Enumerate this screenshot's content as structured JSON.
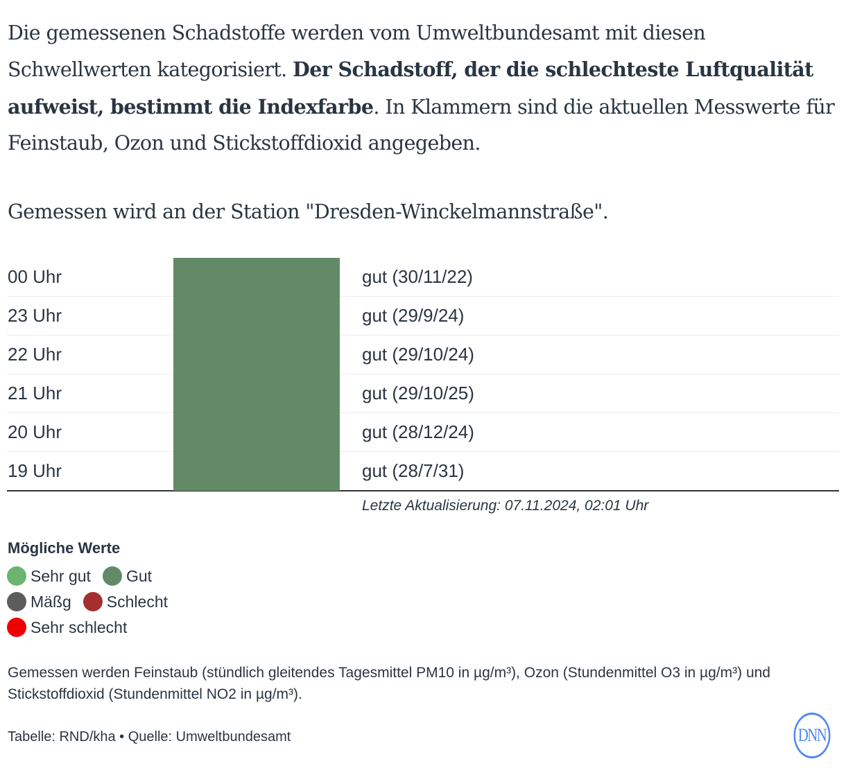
{
  "intro": {
    "part1": "Die gemessenen Schadstoffe werden vom Umweltbundesamt mit diesen Schwellwerten kategorisiert. ",
    "bold": "Der Schadstoff, der die schlechteste Luftqualität aufweist, bestimmt die Indexfarbe",
    "part2": ". In Klammern sind die aktuellen Messwerte für Feinstaub, Ozon und Stickstoffdioxid angegeben."
  },
  "station_text": "Gemessen wird an der Station \"Dresden-Winckelmannstraße\".",
  "table": {
    "rows": [
      {
        "hour": "00 Uhr",
        "value": "gut (30/11/22)",
        "color": "#638a67"
      },
      {
        "hour": "23 Uhr",
        "value": "gut (29/9/24)",
        "color": "#638a67"
      },
      {
        "hour": "22 Uhr",
        "value": "gut (29/10/24)",
        "color": "#638a67"
      },
      {
        "hour": "21 Uhr",
        "value": "gut (29/10/25)",
        "color": "#638a67"
      },
      {
        "hour": "20 Uhr",
        "value": "gut (28/12/24)",
        "color": "#638a67"
      },
      {
        "hour": "19 Uhr",
        "value": "gut (28/7/31)",
        "color": "#638a67"
      }
    ],
    "last_update": "Letzte Aktualisierung: 07.11.2024, 02:01 Uhr"
  },
  "legend": {
    "title": "Mögliche Werte",
    "items": [
      {
        "label": "Sehr gut",
        "color": "#6bb56f"
      },
      {
        "label": "Gut",
        "color": "#638a67"
      },
      {
        "label": "Mäßg",
        "color": "#5c5c5c"
      },
      {
        "label": "Schlecht",
        "color": "#a52f2f"
      },
      {
        "label": "Sehr schlecht",
        "color": "#ee0000"
      }
    ]
  },
  "note": "Gemessen werden Feinstaub (stündlich gleitendes Tagesmittel PM10 in µg/m³), Ozon (Stundenmittel O3 in µg/m³) und Stickstoffdioxid (Stundenmittel NO2 in µg/m³).",
  "credit": "Tabelle: RND/kha • Quelle: Umweltbundesamt",
  "logo": {
    "text": "DNN",
    "color": "#4f86f0"
  }
}
